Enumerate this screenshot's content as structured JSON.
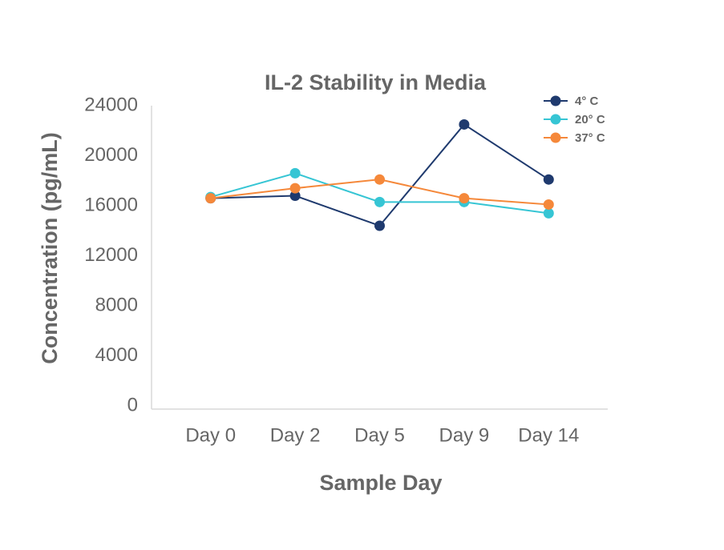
{
  "chart_data": {
    "type": "line",
    "title": "IL-2 Stability in Media",
    "x_label": "Sample Day",
    "y_label": "Concentration (pg/mL)",
    "categories": [
      "Day 0",
      "Day 2",
      "Day 5",
      "Day 9",
      "Day 14"
    ],
    "series": [
      {
        "name": "4° C",
        "color": "#1f3a6e",
        "values": [
          16600,
          16800,
          14400,
          22500,
          18100
        ]
      },
      {
        "name": "20° C",
        "color": "#36c5d4",
        "values": [
          16700,
          18600,
          16300,
          16300,
          15400
        ]
      },
      {
        "name": "37° C",
        "color": "#f5883a",
        "values": [
          16600,
          17400,
          18100,
          16600,
          16100
        ]
      }
    ],
    "ylim": [
      0,
      24000
    ],
    "yticks": [
      0,
      4000,
      8000,
      12000,
      16000,
      20000,
      24000
    ],
    "grid": false,
    "legend": "top-right"
  }
}
